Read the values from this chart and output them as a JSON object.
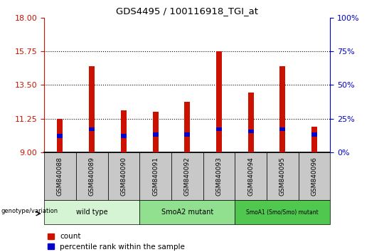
{
  "title": "GDS4495 / 100116918_TGI_at",
  "samples": [
    "GSM840088",
    "GSM840089",
    "GSM840090",
    "GSM840091",
    "GSM840092",
    "GSM840093",
    "GSM840094",
    "GSM840095",
    "GSM840096"
  ],
  "red_values": [
    11.25,
    14.75,
    11.8,
    11.7,
    12.4,
    15.75,
    13.0,
    14.75,
    10.7
  ],
  "blue_values": [
    10.1,
    10.55,
    10.1,
    10.2,
    10.2,
    10.55,
    10.4,
    10.55,
    10.2
  ],
  "ymin": 9,
  "ymax": 18,
  "yticks": [
    9,
    11.25,
    13.5,
    15.75,
    18
  ],
  "right_ytick_pcts": [
    0,
    25,
    50,
    75,
    100
  ],
  "groups": [
    {
      "label": "wild type",
      "start": 0,
      "end": 3,
      "color": "#d4f4d4"
    },
    {
      "label": "SmoA2 mutant",
      "start": 3,
      "end": 6,
      "color": "#90e090"
    },
    {
      "label": "SmoA1 (Smo/Smo) mutant",
      "start": 6,
      "end": 9,
      "color": "#50c850"
    }
  ],
  "bar_width": 0.18,
  "red_color": "#cc1100",
  "blue_color": "#0000cc",
  "grid_color": "#000000",
  "tick_color_left": "#cc1100",
  "tick_color_right": "#0000cc",
  "sample_box_color": "#c8c8c8",
  "legend_count_label": "count",
  "legend_percentile_label": "percentile rank within the sample",
  "genotype_label": "genotype/variation"
}
